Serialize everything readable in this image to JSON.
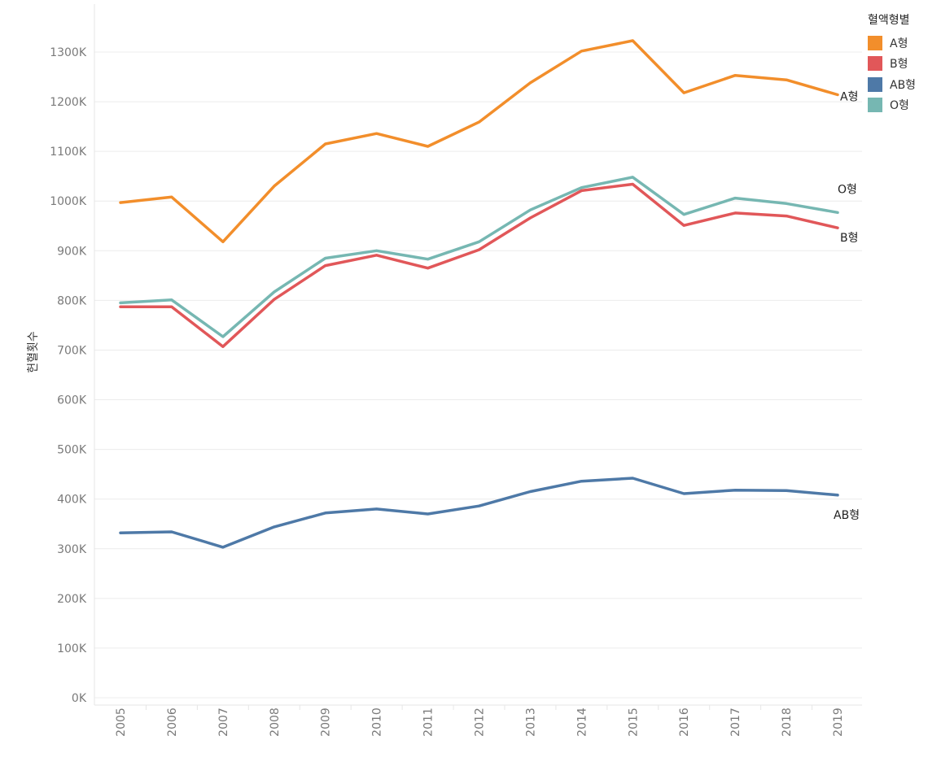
{
  "chart_data": {
    "type": "line",
    "title": "",
    "xlabel": "",
    "ylabel": "헌혈횟수",
    "x": [
      2005,
      2006,
      2007,
      2008,
      2009,
      2010,
      2011,
      2012,
      2013,
      2014,
      2015,
      2016,
      2017,
      2018,
      2019
    ],
    "ylim": [
      0,
      1390000
    ],
    "yticks": [
      0,
      100000,
      200000,
      300000,
      400000,
      500000,
      600000,
      700000,
      800000,
      900000,
      1000000,
      1100000,
      1200000,
      1300000
    ],
    "ytick_labels": [
      "0K",
      "100K",
      "200K",
      "300K",
      "400K",
      "500K",
      "600K",
      "700K",
      "800K",
      "900K",
      "1000K",
      "1100K",
      "1200K",
      "1300K"
    ],
    "grid": true,
    "legend": {
      "title": "혈액형별",
      "position": "top-right"
    },
    "series": [
      {
        "name": "A형",
        "color": "#F28E2B",
        "values": [
          997000,
          1008000,
          918000,
          1030000,
          1115000,
          1136000,
          1110000,
          1159000,
          1238000,
          1302000,
          1323000,
          1218000,
          1253000,
          1244000,
          1214000
        ]
      },
      {
        "name": "B형",
        "color": "#E15759",
        "values": [
          787000,
          787000,
          707000,
          802000,
          870000,
          891000,
          865000,
          902000,
          966000,
          1021000,
          1034000,
          951000,
          976000,
          970000,
          946000
        ]
      },
      {
        "name": "AB형",
        "color": "#4E79A7",
        "values": [
          332000,
          334000,
          303000,
          344000,
          372000,
          380000,
          370000,
          386000,
          415000,
          436000,
          442000,
          411000,
          418000,
          417000,
          408000
        ]
      },
      {
        "name": "O형",
        "color": "#76B7B2",
        "values": [
          795000,
          801000,
          727000,
          817000,
          885000,
          900000,
          883000,
          918000,
          982000,
          1027000,
          1048000,
          973000,
          1006000,
          995000,
          977000
        ]
      }
    ],
    "end_labels": [
      "A형",
      "B형",
      "AB형",
      "O형"
    ]
  }
}
